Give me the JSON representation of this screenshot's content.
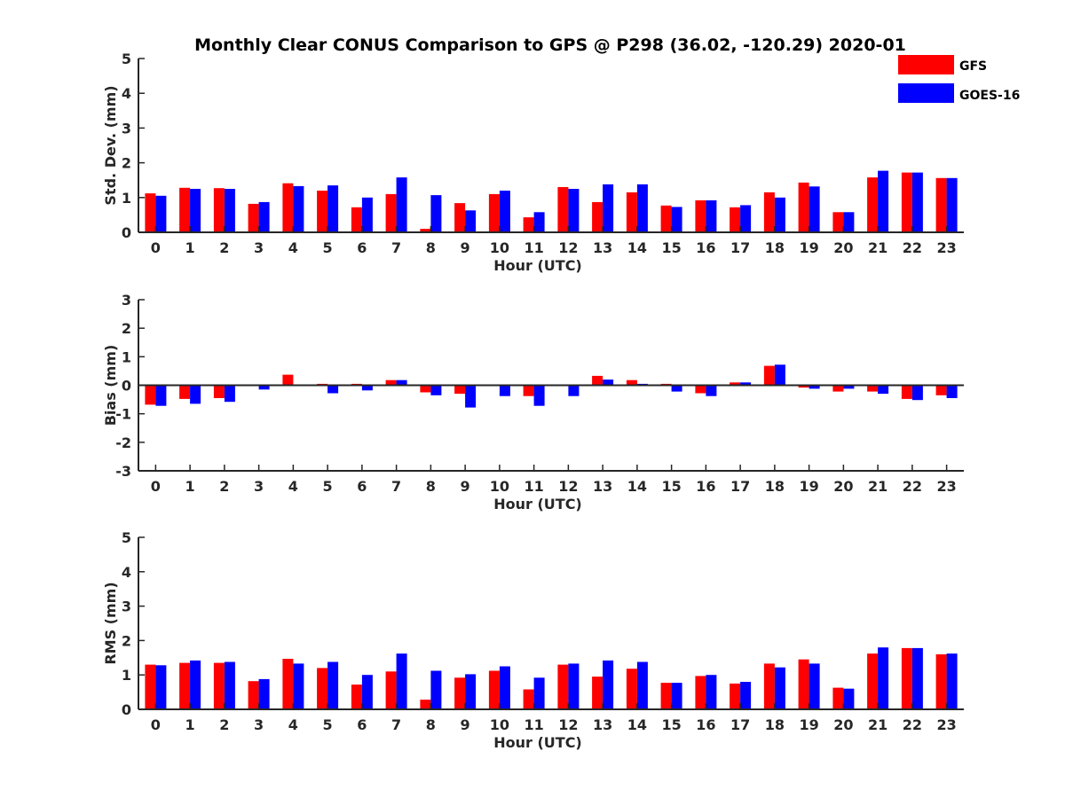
{
  "title": "Monthly Clear CONUS Comparison to GPS @ P298 (36.02, -120.29) 2020-01",
  "legend": {
    "entries": [
      {
        "name": "GFS",
        "color": "#ff0000"
      },
      {
        "name": "GOES-16",
        "color": "#0000ff"
      }
    ],
    "location": "top-right"
  },
  "chart_data": [
    {
      "type": "bar",
      "ylabel": "Std. Dev. (mm)",
      "xlabel": "Hour (UTC)",
      "ylim": [
        0,
        5
      ],
      "yticks": [
        0,
        1,
        2,
        3,
        4,
        5
      ],
      "categories": [
        "0",
        "1",
        "2",
        "3",
        "4",
        "5",
        "6",
        "7",
        "8",
        "9",
        "10",
        "11",
        "12",
        "13",
        "14",
        "15",
        "16",
        "17",
        "18",
        "19",
        "20",
        "21",
        "22",
        "23"
      ],
      "series": [
        {
          "name": "GFS",
          "values": [
            1.12,
            1.28,
            1.27,
            0.82,
            1.41,
            1.2,
            0.72,
            1.1,
            0.1,
            0.84,
            1.1,
            0.43,
            1.3,
            0.87,
            1.15,
            0.77,
            0.92,
            0.72,
            1.15,
            1.43,
            0.58,
            1.58,
            1.72,
            1.56
          ]
        },
        {
          "name": "GOES-16",
          "values": [
            1.05,
            1.25,
            1.25,
            0.87,
            1.33,
            1.35,
            1.0,
            1.58,
            1.07,
            0.63,
            1.2,
            0.58,
            1.25,
            1.38,
            1.38,
            0.73,
            0.92,
            0.78,
            1.0,
            1.32,
            0.58,
            1.77,
            1.72,
            1.56
          ]
        }
      ]
    },
    {
      "type": "bar",
      "ylabel": "Bias (mm)",
      "xlabel": "Hour (UTC)",
      "ylim": [
        -3,
        3
      ],
      "yticks": [
        -3,
        -2,
        -1,
        0,
        1,
        2,
        3
      ],
      "categories": [
        "0",
        "1",
        "2",
        "3",
        "4",
        "5",
        "6",
        "7",
        "8",
        "9",
        "10",
        "11",
        "12",
        "13",
        "14",
        "15",
        "16",
        "17",
        "18",
        "19",
        "20",
        "21",
        "22",
        "23"
      ],
      "series": [
        {
          "name": "GFS",
          "values": [
            -0.68,
            -0.48,
            -0.45,
            -0.02,
            0.37,
            0.05,
            0.05,
            0.18,
            -0.25,
            -0.3,
            -0.02,
            -0.38,
            0.02,
            0.33,
            0.18,
            0.05,
            -0.28,
            0.1,
            0.68,
            -0.08,
            -0.22,
            -0.22,
            -0.48,
            -0.35
          ]
        },
        {
          "name": "GOES-16",
          "values": [
            -0.72,
            -0.65,
            -0.58,
            -0.15,
            0.0,
            -0.28,
            -0.18,
            0.18,
            -0.35,
            -0.78,
            -0.38,
            -0.72,
            -0.38,
            0.2,
            0.05,
            -0.22,
            -0.38,
            0.1,
            0.72,
            -0.12,
            -0.12,
            -0.3,
            -0.52,
            -0.45
          ]
        }
      ]
    },
    {
      "type": "bar",
      "ylabel": "RMS (mm)",
      "xlabel": "Hour (UTC)",
      "ylim": [
        0,
        5
      ],
      "yticks": [
        0,
        1,
        2,
        3,
        4,
        5
      ],
      "categories": [
        "0",
        "1",
        "2",
        "3",
        "4",
        "5",
        "6",
        "7",
        "8",
        "9",
        "10",
        "11",
        "12",
        "13",
        "14",
        "15",
        "16",
        "17",
        "18",
        "19",
        "20",
        "21",
        "22",
        "23"
      ],
      "series": [
        {
          "name": "GFS",
          "values": [
            1.3,
            1.35,
            1.35,
            0.82,
            1.47,
            1.2,
            0.72,
            1.1,
            0.28,
            0.92,
            1.12,
            0.58,
            1.3,
            0.95,
            1.18,
            0.77,
            0.97,
            0.75,
            1.33,
            1.45,
            0.63,
            1.62,
            1.78,
            1.6
          ]
        },
        {
          "name": "GOES-16",
          "values": [
            1.28,
            1.42,
            1.38,
            0.88,
            1.33,
            1.38,
            1.0,
            1.62,
            1.12,
            1.02,
            1.25,
            0.92,
            1.33,
            1.42,
            1.38,
            0.77,
            1.0,
            0.8,
            1.22,
            1.33,
            0.6,
            1.8,
            1.78,
            1.62
          ]
        }
      ]
    }
  ]
}
